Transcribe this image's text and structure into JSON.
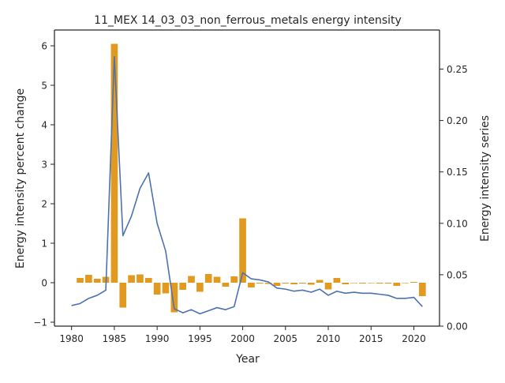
{
  "chart_data": {
    "type": "bar",
    "title": "11_MEX 14_03_03_non_ferrous_metals energy intensity",
    "xlabel": "Year",
    "ylabel": "Energy intensity percent change",
    "y2label": "Energy intensity series",
    "xlim": [
      1978,
      2023
    ],
    "ylim": [
      -1.1,
      6.4
    ],
    "y2lim": [
      0.0,
      0.288
    ],
    "xticks": [
      1980,
      1985,
      1990,
      1995,
      2000,
      2005,
      2010,
      2015,
      2020
    ],
    "yticks": [
      -1,
      0,
      1,
      2,
      3,
      4,
      5,
      6
    ],
    "y2ticks": [
      0.0,
      0.05,
      0.1,
      0.15,
      0.2,
      0.25
    ],
    "y2tick_labels": [
      "0.00",
      "0.05",
      "0.10",
      "0.15",
      "0.20",
      "0.25"
    ],
    "grid": false,
    "colors": {
      "bars": "#e19a1f",
      "line": "#4c72b0",
      "axes": "#262626"
    },
    "series": [
      {
        "name": "",
        "kind": "bar",
        "axis": "left",
        "x": [
          1981,
          1982,
          1983,
          1984,
          1985,
          1986,
          1987,
          1988,
          1989,
          1990,
          1991,
          1992,
          1993,
          1994,
          1995,
          1996,
          1997,
          1998,
          1999,
          2000,
          2001,
          2002,
          2003,
          2004,
          2005,
          2006,
          2007,
          2008,
          2009,
          2010,
          2011,
          2012,
          2013,
          2014,
          2015,
          2016,
          2017,
          2018,
          2019,
          2020,
          2021
        ],
        "values": [
          0.12,
          0.2,
          0.1,
          0.15,
          6.05,
          -0.63,
          0.19,
          0.21,
          0.12,
          -0.3,
          -0.27,
          -0.75,
          -0.18,
          0.17,
          -0.23,
          0.22,
          0.15,
          -0.1,
          0.16,
          1.63,
          -0.12,
          -0.02,
          -0.03,
          -0.08,
          -0.02,
          -0.04,
          -0.02,
          -0.05,
          0.07,
          -0.17,
          0.12,
          -0.04,
          -0.01,
          -0.02,
          -0.01,
          -0.02,
          -0.02,
          -0.08,
          -0.01,
          0.02,
          -0.34
        ]
      },
      {
        "name": "",
        "kind": "line",
        "axis": "right",
        "x": [
          1980,
          1981,
          1982,
          1983,
          1984,
          1985,
          1986,
          1987,
          1988,
          1989,
          1990,
          1991,
          1992,
          1993,
          1994,
          1995,
          1996,
          1997,
          1998,
          1999,
          2000,
          2001,
          2002,
          2003,
          2004,
          2005,
          2006,
          2007,
          2008,
          2009,
          2010,
          2011,
          2012,
          2013,
          2014,
          2015,
          2016,
          2017,
          2018,
          2019,
          2020,
          2021
        ],
        "values": [
          0.02,
          0.022,
          0.027,
          0.03,
          0.035,
          0.262,
          0.088,
          0.107,
          0.134,
          0.149,
          0.1,
          0.073,
          0.017,
          0.013,
          0.016,
          0.012,
          0.015,
          0.018,
          0.016,
          0.019,
          0.052,
          0.046,
          0.045,
          0.043,
          0.037,
          0.036,
          0.034,
          0.035,
          0.033,
          0.036,
          0.03,
          0.034,
          0.032,
          0.033,
          0.032,
          0.032,
          0.031,
          0.03,
          0.027,
          0.027,
          0.028,
          0.019
        ]
      }
    ]
  }
}
